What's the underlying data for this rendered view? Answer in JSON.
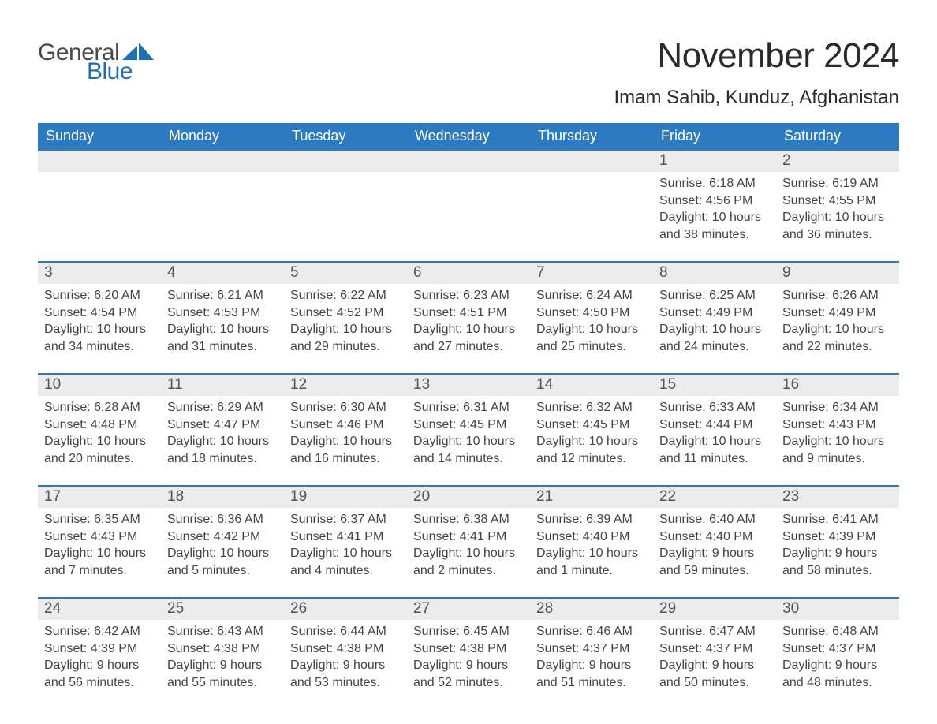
{
  "brand": {
    "line1": "General",
    "line2": "Blue"
  },
  "title": "November 2024",
  "location": "Imam Sahib, Kunduz, Afghanistan",
  "colors": {
    "header_bg": "#2c7abf",
    "rule": "#2c7abf",
    "date_band": "#ececec",
    "logo_blue": "#1e6fb5",
    "logo_dark": "#4a4a4a",
    "text": "#333333",
    "bg": "#ffffff"
  },
  "day_headers": [
    "Sunday",
    "Monday",
    "Tuesday",
    "Wednesday",
    "Thursday",
    "Friday",
    "Saturday"
  ],
  "weeks": [
    [
      null,
      null,
      null,
      null,
      null,
      {
        "n": "1",
        "sunrise": "6:18 AM",
        "sunset": "4:56 PM",
        "daylight": "10 hours and 38 minutes."
      },
      {
        "n": "2",
        "sunrise": "6:19 AM",
        "sunset": "4:55 PM",
        "daylight": "10 hours and 36 minutes."
      }
    ],
    [
      {
        "n": "3",
        "sunrise": "6:20 AM",
        "sunset": "4:54 PM",
        "daylight": "10 hours and 34 minutes."
      },
      {
        "n": "4",
        "sunrise": "6:21 AM",
        "sunset": "4:53 PM",
        "daylight": "10 hours and 31 minutes."
      },
      {
        "n": "5",
        "sunrise": "6:22 AM",
        "sunset": "4:52 PM",
        "daylight": "10 hours and 29 minutes."
      },
      {
        "n": "6",
        "sunrise": "6:23 AM",
        "sunset": "4:51 PM",
        "daylight": "10 hours and 27 minutes."
      },
      {
        "n": "7",
        "sunrise": "6:24 AM",
        "sunset": "4:50 PM",
        "daylight": "10 hours and 25 minutes."
      },
      {
        "n": "8",
        "sunrise": "6:25 AM",
        "sunset": "4:49 PM",
        "daylight": "10 hours and 24 minutes."
      },
      {
        "n": "9",
        "sunrise": "6:26 AM",
        "sunset": "4:49 PM",
        "daylight": "10 hours and 22 minutes."
      }
    ],
    [
      {
        "n": "10",
        "sunrise": "6:28 AM",
        "sunset": "4:48 PM",
        "daylight": "10 hours and 20 minutes."
      },
      {
        "n": "11",
        "sunrise": "6:29 AM",
        "sunset": "4:47 PM",
        "daylight": "10 hours and 18 minutes."
      },
      {
        "n": "12",
        "sunrise": "6:30 AM",
        "sunset": "4:46 PM",
        "daylight": "10 hours and 16 minutes."
      },
      {
        "n": "13",
        "sunrise": "6:31 AM",
        "sunset": "4:45 PM",
        "daylight": "10 hours and 14 minutes."
      },
      {
        "n": "14",
        "sunrise": "6:32 AM",
        "sunset": "4:45 PM",
        "daylight": "10 hours and 12 minutes."
      },
      {
        "n": "15",
        "sunrise": "6:33 AM",
        "sunset": "4:44 PM",
        "daylight": "10 hours and 11 minutes."
      },
      {
        "n": "16",
        "sunrise": "6:34 AM",
        "sunset": "4:43 PM",
        "daylight": "10 hours and 9 minutes."
      }
    ],
    [
      {
        "n": "17",
        "sunrise": "6:35 AM",
        "sunset": "4:43 PM",
        "daylight": "10 hours and 7 minutes."
      },
      {
        "n": "18",
        "sunrise": "6:36 AM",
        "sunset": "4:42 PM",
        "daylight": "10 hours and 5 minutes."
      },
      {
        "n": "19",
        "sunrise": "6:37 AM",
        "sunset": "4:41 PM",
        "daylight": "10 hours and 4 minutes."
      },
      {
        "n": "20",
        "sunrise": "6:38 AM",
        "sunset": "4:41 PM",
        "daylight": "10 hours and 2 minutes."
      },
      {
        "n": "21",
        "sunrise": "6:39 AM",
        "sunset": "4:40 PM",
        "daylight": "10 hours and 1 minute."
      },
      {
        "n": "22",
        "sunrise": "6:40 AM",
        "sunset": "4:40 PM",
        "daylight": "9 hours and 59 minutes."
      },
      {
        "n": "23",
        "sunrise": "6:41 AM",
        "sunset": "4:39 PM",
        "daylight": "9 hours and 58 minutes."
      }
    ],
    [
      {
        "n": "24",
        "sunrise": "6:42 AM",
        "sunset": "4:39 PM",
        "daylight": "9 hours and 56 minutes."
      },
      {
        "n": "25",
        "sunrise": "6:43 AM",
        "sunset": "4:38 PM",
        "daylight": "9 hours and 55 minutes."
      },
      {
        "n": "26",
        "sunrise": "6:44 AM",
        "sunset": "4:38 PM",
        "daylight": "9 hours and 53 minutes."
      },
      {
        "n": "27",
        "sunrise": "6:45 AM",
        "sunset": "4:38 PM",
        "daylight": "9 hours and 52 minutes."
      },
      {
        "n": "28",
        "sunrise": "6:46 AM",
        "sunset": "4:37 PM",
        "daylight": "9 hours and 51 minutes."
      },
      {
        "n": "29",
        "sunrise": "6:47 AM",
        "sunset": "4:37 PM",
        "daylight": "9 hours and 50 minutes."
      },
      {
        "n": "30",
        "sunrise": "6:48 AM",
        "sunset": "4:37 PM",
        "daylight": "9 hours and 48 minutes."
      }
    ]
  ],
  "labels": {
    "sunrise": "Sunrise: ",
    "sunset": "Sunset: ",
    "daylight": "Daylight: "
  }
}
